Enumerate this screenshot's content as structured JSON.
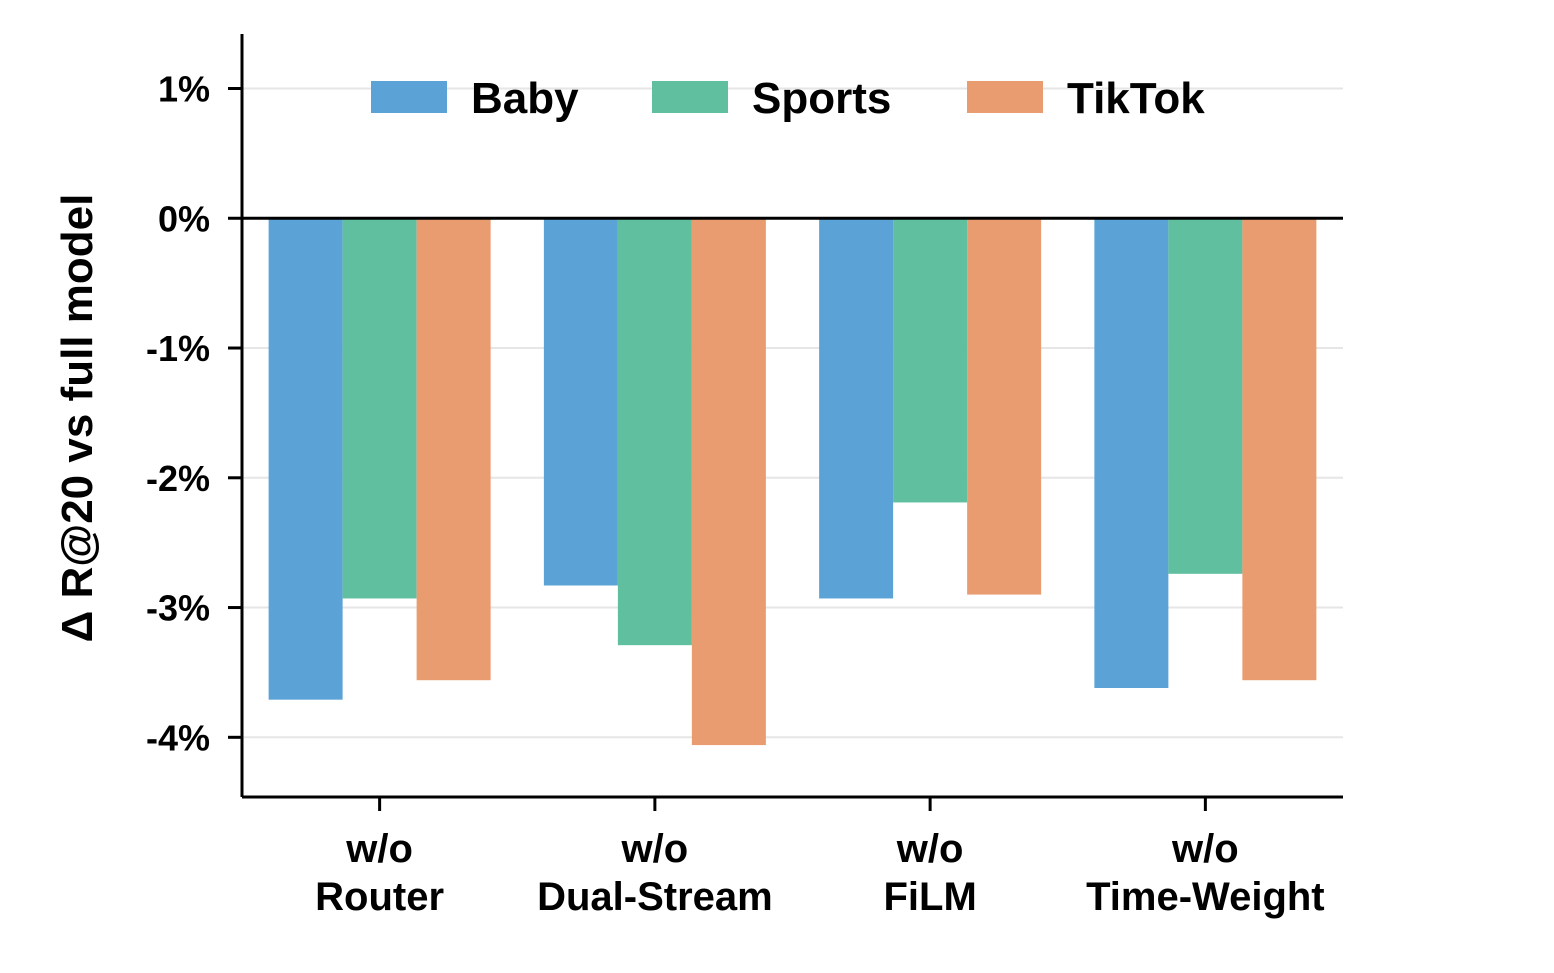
{
  "chart_data": {
    "type": "bar",
    "title": "",
    "xlabel": "",
    "ylabel": "Δ R@20 vs full model",
    "categories": [
      [
        "w/o",
        "Router"
      ],
      [
        "w/o",
        "Dual-Stream"
      ],
      [
        "w/o",
        "FiLM"
      ],
      [
        "w/o",
        "Time-Weight"
      ]
    ],
    "series": [
      {
        "name": "Baby",
        "color": "#5ba3d6",
        "values": [
          -3.71,
          -2.83,
          -2.93,
          -3.62
        ]
      },
      {
        "name": "Sports",
        "color": "#5fbf9f",
        "values": [
          -2.93,
          -3.29,
          -2.19,
          -2.74
        ]
      },
      {
        "name": "TikTok",
        "color": "#e99c6f",
        "values": [
          -3.56,
          -4.06,
          -2.9,
          -3.56
        ]
      }
    ],
    "ylim": [
      -4.46,
      1.42
    ],
    "yticks": [
      1,
      0,
      -1,
      -2,
      -3,
      -4
    ],
    "ytick_labels": [
      "1%",
      "0%",
      "-1%",
      "-2%",
      "-3%",
      "-4%"
    ],
    "grid": true,
    "legend_position": "top-center"
  }
}
